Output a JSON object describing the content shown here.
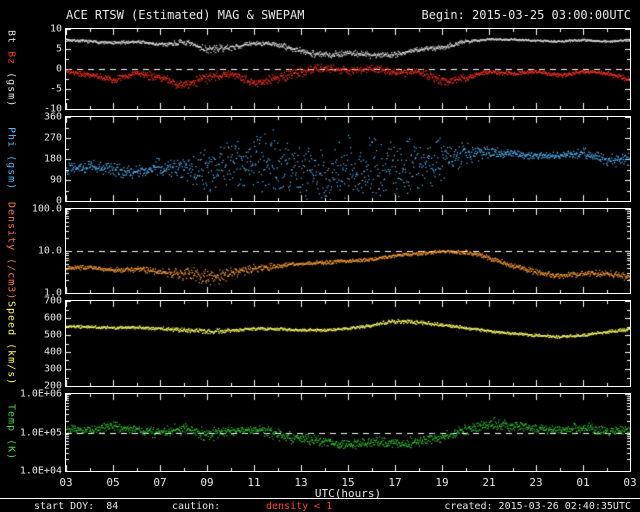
{
  "header": {
    "title": "ACE RTSW (Estimated) MAG & SWEPAM",
    "begin": "Begin: 2015-03-25 03:00:00UTC"
  },
  "footer": {
    "start_doy": "start DOY:  84",
    "caution": "caution:",
    "caution_detail": "density < 1",
    "created": "created: 2015-03-26 02:40:35UTC"
  },
  "colors": {
    "background": "#000000",
    "frame": "#ffffff",
    "tick_text": "#e6e6e6",
    "bt": "#dddddd",
    "bz": "#ff3322",
    "phi": "#55bbff",
    "density": "#ffa033",
    "speed": "#ffff66",
    "temp": "#33cc33",
    "caution_red": "#ff4433"
  },
  "chart_data": {
    "type": "scatter",
    "xlabel": "UTC(hours)",
    "x_hours_start": 3,
    "x_hours_span": 24,
    "x_ticks": [
      "03",
      "05",
      "07",
      "09",
      "11",
      "13",
      "15",
      "17",
      "19",
      "21",
      "23",
      "01",
      "03"
    ],
    "anchor_hours": [
      3,
      4,
      5,
      6,
      7,
      8,
      9,
      10,
      11,
      12,
      13,
      14,
      15,
      16,
      17,
      18,
      19,
      20,
      21,
      22,
      23,
      24,
      25,
      26,
      27
    ],
    "panels": [
      {
        "id": "mag",
        "ylabel_parts": [
          {
            "text": "Bt ",
            "color": "#e6e6e6"
          },
          {
            "text": "Bz ",
            "color": "#ff3322"
          },
          {
            "text": "(gsm)",
            "color": "#e6e6e6"
          }
        ],
        "scale": "linear",
        "ylim": [
          -10,
          10
        ],
        "yticks": [
          "10",
          "5",
          "0",
          "-5",
          "-10"
        ],
        "dashed_at": 0,
        "series": [
          {
            "name": "Bt",
            "color": "#dddddd",
            "values": [
              7.4,
              7.0,
              6.6,
              7.0,
              6.2,
              6.8,
              5.0,
              5.5,
              6.6,
              6.2,
              4.5,
              3.6,
              4.2,
              3.6,
              3.8,
              5.0,
              5.6,
              7.0,
              7.6,
              7.5,
              7.2,
              7.0,
              7.4,
              7.0,
              7.4
            ],
            "spread": [
              0.4,
              0.4,
              0.5,
              0.5,
              0.6,
              0.9,
              1.2,
              0.8,
              0.6,
              0.8,
              1.0,
              1.0,
              0.9,
              0.9,
              0.9,
              0.8,
              0.8,
              0.5,
              0.3,
              0.3,
              0.3,
              0.3,
              0.3,
              0.3,
              0.3
            ]
          },
          {
            "name": "Bz",
            "color": "#ff3322",
            "values": [
              -0.5,
              -1.5,
              -2.5,
              -1.0,
              -2.0,
              -4.0,
              -2.0,
              -1.0,
              -3.5,
              -2.0,
              -0.5,
              0.5,
              -0.5,
              0.5,
              -1.0,
              -0.5,
              -3.0,
              -2.0,
              -0.5,
              -1.0,
              -0.5,
              -1.5,
              -0.5,
              -1.0,
              -2.5
            ],
            "spread": [
              0.8,
              0.8,
              1.0,
              1.0,
              1.2,
              1.6,
              1.8,
              1.2,
              1.2,
              1.5,
              1.5,
              1.2,
              1.2,
              1.2,
              1.2,
              1.2,
              1.5,
              1.0,
              0.6,
              0.6,
              0.5,
              0.6,
              0.5,
              0.6,
              0.8
            ]
          }
        ]
      },
      {
        "id": "phi",
        "ylabel_parts": [
          {
            "text": "Phi (gsm)",
            "color": "#55bbff"
          }
        ],
        "scale": "linear",
        "wrap360": true,
        "ylim": [
          0,
          360
        ],
        "yticks": [
          "360",
          "270",
          "180",
          "90",
          "0"
        ],
        "dashed_at": null,
        "series": [
          {
            "name": "Phi",
            "color": "#55bbff",
            "values": [
              140,
              150,
              135,
              130,
              150,
              140,
              130,
              150,
              190,
              170,
              130,
              110,
              140,
              150,
              130,
              150,
              180,
              205,
              210,
              205,
              195,
              200,
              210,
              175,
              185
            ],
            "spread": [
              30,
              30,
              35,
              35,
              40,
              60,
              120,
              130,
              140,
              150,
              150,
              150,
              150,
              150,
              140,
              130,
              110,
              50,
              25,
              20,
              20,
              20,
              25,
              30,
              40
            ]
          }
        ]
      },
      {
        "id": "density",
        "ylabel_parts": [
          {
            "text": "Density (/cm3)",
            "color": "#ff7733"
          }
        ],
        "scale": "log",
        "ylim": [
          1,
          100
        ],
        "yticks": [
          "100.0",
          "10.0",
          "1.0"
        ],
        "dashed_at": 10,
        "series": [
          {
            "name": "Density",
            "color": "#ffa033",
            "values": [
              4.0,
              4.2,
              3.6,
              3.8,
              3.2,
              3.0,
              2.2,
              3.0,
              4.0,
              4.5,
              5.0,
              5.5,
              6.0,
              6.5,
              8.0,
              9.0,
              10.0,
              9.5,
              7.0,
              4.5,
              3.2,
              2.6,
              3.0,
              3.0,
              2.4
            ],
            "spread": [
              0.06,
              0.06,
              0.07,
              0.08,
              0.1,
              0.18,
              0.25,
              0.15,
              0.1,
              0.08,
              0.06,
              0.06,
              0.05,
              0.05,
              0.05,
              0.05,
              0.05,
              0.06,
              0.08,
              0.08,
              0.08,
              0.08,
              0.08,
              0.09,
              0.1
            ]
          }
        ]
      },
      {
        "id": "speed",
        "ylabel_parts": [
          {
            "text": "Speed (km/s)",
            "color": "#ffff55"
          }
        ],
        "scale": "linear",
        "ylim": [
          200,
          700
        ],
        "yticks": [
          "700",
          "600",
          "500",
          "400",
          "300",
          "200"
        ],
        "dashed_at": null,
        "series": [
          {
            "name": "Speed",
            "color": "#ffff66",
            "values": [
              555,
              550,
              545,
              548,
              540,
              532,
              522,
              530,
              540,
              538,
              532,
              530,
              542,
              560,
              585,
              578,
              562,
              545,
              525,
              512,
              500,
              492,
              502,
              520,
              538
            ],
            "spread": [
              10,
              10,
              10,
              10,
              12,
              16,
              18,
              12,
              10,
              10,
              10,
              10,
              10,
              12,
              15,
              14,
              12,
              10,
              10,
              10,
              10,
              10,
              10,
              12,
              12
            ]
          }
        ]
      },
      {
        "id": "temp",
        "ylabel_parts": [
          {
            "text": "Temp (K)",
            "color": "#44dd44"
          }
        ],
        "scale": "log",
        "ylim": [
          10000,
          1000000
        ],
        "yticks": [
          "1.0E+06",
          "1.0E+05",
          "1.0E+04"
        ],
        "dashed_at": 100000,
        "series": [
          {
            "name": "Temp",
            "color": "#33cc33",
            "values": [
              130000,
              120000,
              150000,
              120000,
              100000,
              130000,
              90000,
              110000,
              120000,
              90000,
              70000,
              60000,
              50000,
              60000,
              55000,
              60000,
              80000,
              120000,
              180000,
              150000,
              130000,
              120000,
              140000,
              110000,
              120000
            ],
            "spread": [
              0.12,
              0.12,
              0.15,
              0.15,
              0.15,
              0.18,
              0.2,
              0.15,
              0.15,
              0.18,
              0.18,
              0.18,
              0.15,
              0.15,
              0.15,
              0.15,
              0.15,
              0.15,
              0.18,
              0.15,
              0.12,
              0.12,
              0.15,
              0.15,
              0.12
            ]
          }
        ]
      }
    ]
  }
}
